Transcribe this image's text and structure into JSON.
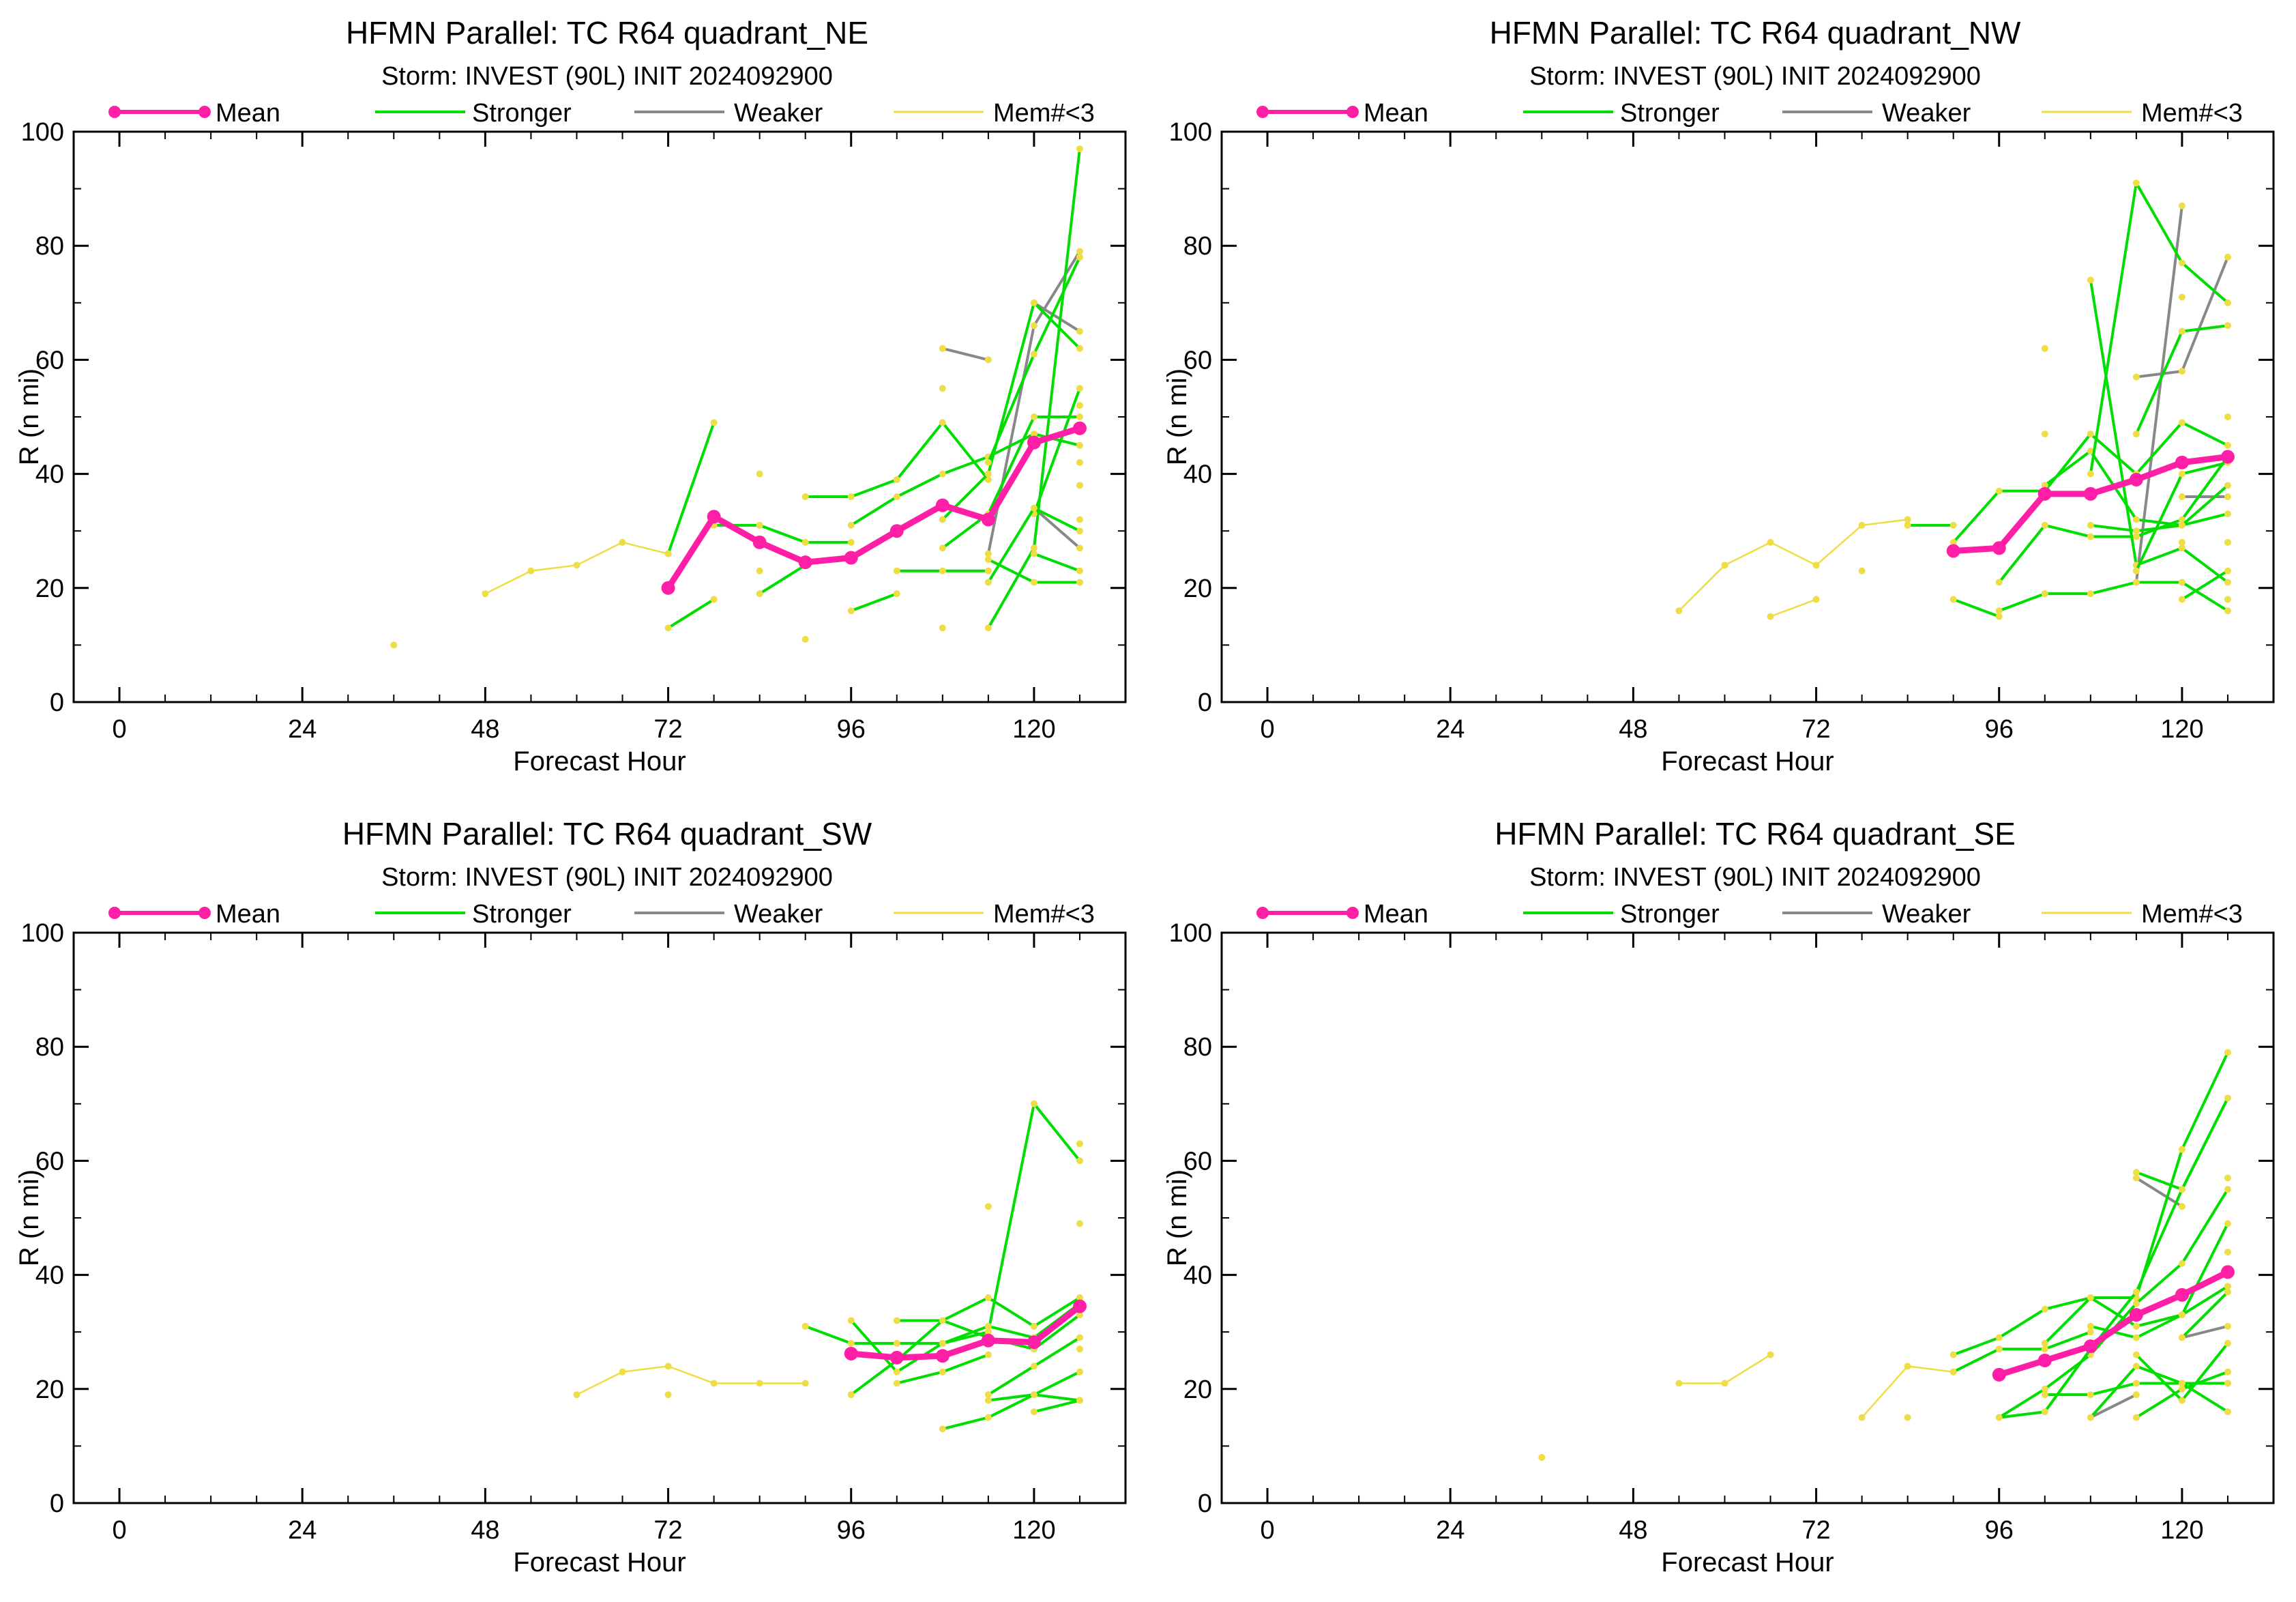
{
  "colors": {
    "mean": "#ff1fa6",
    "stronger": "#00dd00",
    "weaker": "#888888",
    "few_members": "#eedd44",
    "axis": "#000000"
  },
  "legend": {
    "mean": "Mean",
    "stronger": "Stronger",
    "weaker": "Weaker",
    "few_members": "Mem#<3"
  },
  "chart_data": [
    {
      "type": "line",
      "title": "HFMN Parallel: TC  R64 quadrant_NE",
      "subtitle": "Storm: INVEST (90L) INIT 2024092900",
      "xlabel": "Forecast Hour",
      "ylabel": "R (n mi)",
      "xlim": [
        -6,
        132
      ],
      "ylim": [
        0,
        100
      ],
      "xticks": [
        0,
        24,
        48,
        72,
        96,
        120
      ],
      "yticks": [
        0,
        20,
        40,
        60,
        80,
        100
      ],
      "grid": false,
      "mean": {
        "x": [
          72,
          78,
          84,
          90,
          96,
          102,
          108,
          114,
          120,
          126
        ],
        "y": [
          20,
          32.5,
          28,
          24.5,
          25.3,
          30,
          34.5,
          32,
          45.5,
          48
        ]
      },
      "stronger": [
        {
          "x": [
            72,
            78
          ],
          "y": [
            26,
            49
          ]
        },
        {
          "x": [
            72,
            78
          ],
          "y": [
            13,
            18
          ]
        },
        {
          "x": [
            78,
            84
          ],
          "y": [
            31,
            31
          ]
        },
        {
          "x": [
            84,
            90,
            96
          ],
          "y": [
            31,
            28,
            28
          ]
        },
        {
          "x": [
            84,
            90
          ],
          "y": [
            19,
            24
          ]
        },
        {
          "x": [
            90,
            96,
            102,
            108,
            114
          ],
          "y": [
            36,
            36,
            39,
            49,
            39
          ]
        },
        {
          "x": [
            96,
            102,
            108,
            114,
            120,
            126
          ],
          "y": [
            31,
            36,
            40,
            43,
            47,
            45
          ]
        },
        {
          "x": [
            96,
            102
          ],
          "y": [
            16,
            19
          ]
        },
        {
          "x": [
            102,
            108,
            114
          ],
          "y": [
            23,
            23,
            23
          ]
        },
        {
          "x": [
            108,
            114,
            120,
            126
          ],
          "y": [
            32,
            40,
            70,
            62
          ]
        },
        {
          "x": [
            108,
            114,
            120,
            126
          ],
          "y": [
            27,
            33,
            50,
            50
          ]
        },
        {
          "x": [
            114,
            120,
            126
          ],
          "y": [
            13,
            27,
            97
          ]
        },
        {
          "x": [
            114,
            120,
            126
          ],
          "y": [
            42,
            61,
            78
          ]
        },
        {
          "x": [
            114,
            120,
            126
          ],
          "y": [
            25,
            21,
            21
          ]
        },
        {
          "x": [
            120,
            126
          ],
          "y": [
            26,
            23
          ]
        },
        {
          "x": [
            120,
            126
          ],
          "y": [
            33,
            55
          ]
        },
        {
          "x": [
            114,
            120,
            126
          ],
          "y": [
            21,
            34,
            30
          ]
        }
      ],
      "weaker": [
        {
          "x": [
            108,
            114
          ],
          "y": [
            62,
            60
          ]
        },
        {
          "x": [
            114,
            120,
            126
          ],
          "y": [
            26,
            66,
            79
          ]
        },
        {
          "x": [
            120,
            126
          ],
          "y": [
            70,
            65
          ]
        },
        {
          "x": [
            120,
            126
          ],
          "y": [
            34,
            27
          ]
        }
      ],
      "few_members": [
        {
          "x": [
            36
          ],
          "y": [
            10
          ]
        },
        {
          "x": [
            48,
            54,
            60,
            66,
            72
          ],
          "y": [
            19,
            23,
            24,
            28,
            26
          ]
        },
        {
          "x": [
            84
          ],
          "y": [
            40
          ]
        },
        {
          "x": [
            84
          ],
          "y": [
            23
          ]
        },
        {
          "x": [
            90
          ],
          "y": [
            11
          ]
        },
        {
          "x": [
            108
          ],
          "y": [
            55
          ]
        },
        {
          "x": [
            108
          ],
          "y": [
            13
          ]
        },
        {
          "x": [
            126
          ],
          "y": [
            52
          ]
        },
        {
          "x": [
            126
          ],
          "y": [
            42
          ]
        },
        {
          "x": [
            126
          ],
          "y": [
            38
          ]
        },
        {
          "x": [
            126
          ],
          "y": [
            32
          ]
        }
      ]
    },
    {
      "type": "line",
      "title": "HFMN Parallel: TC  R64 quadrant_NW",
      "subtitle": "Storm: INVEST (90L) INIT 2024092900",
      "xlabel": "Forecast Hour",
      "ylabel": "R (n mi)",
      "xlim": [
        -6,
        132
      ],
      "ylim": [
        0,
        100
      ],
      "xticks": [
        0,
        24,
        48,
        72,
        96,
        120
      ],
      "yticks": [
        0,
        20,
        40,
        60,
        80,
        100
      ],
      "grid": false,
      "mean": {
        "x": [
          90,
          96,
          102,
          108,
          114,
          120,
          126
        ],
        "y": [
          26.5,
          27,
          36.5,
          36.5,
          39,
          42,
          43
        ]
      },
      "stronger": [
        {
          "x": [
            84,
            90
          ],
          "y": [
            31,
            31
          ]
        },
        {
          "x": [
            90,
            96,
            102,
            108,
            114,
            120,
            126
          ],
          "y": [
            28,
            37,
            37,
            47,
            40,
            49,
            45
          ]
        },
        {
          "x": [
            90,
            96
          ],
          "y": [
            18,
            15
          ]
        },
        {
          "x": [
            96,
            102,
            108,
            114,
            120,
            126
          ],
          "y": [
            21,
            31,
            29,
            29,
            32,
            43
          ]
        },
        {
          "x": [
            96,
            102,
            108,
            114,
            120,
            126
          ],
          "y": [
            16,
            19,
            19,
            21,
            21,
            16
          ]
        },
        {
          "x": [
            102,
            108,
            114,
            120,
            126
          ],
          "y": [
            38,
            44,
            32,
            31,
            38
          ]
        },
        {
          "x": [
            108,
            114,
            120,
            126
          ],
          "y": [
            74,
            24,
            27,
            21
          ]
        },
        {
          "x": [
            108,
            114,
            120,
            126
          ],
          "y": [
            40,
            91,
            77,
            70
          ]
        },
        {
          "x": [
            108,
            114,
            120,
            126
          ],
          "y": [
            31,
            30,
            31,
            33
          ]
        },
        {
          "x": [
            114,
            120,
            126
          ],
          "y": [
            47,
            65,
            66
          ]
        },
        {
          "x": [
            114,
            120,
            126
          ],
          "y": [
            23,
            40,
            42
          ]
        },
        {
          "x": [
            120,
            126
          ],
          "y": [
            18,
            23
          ]
        }
      ],
      "weaker": [
        {
          "x": [
            114,
            120,
            126
          ],
          "y": [
            57,
            58,
            78
          ]
        },
        {
          "x": [
            114,
            120
          ],
          "y": [
            21,
            87
          ]
        },
        {
          "x": [
            120,
            126
          ],
          "y": [
            36,
            36
          ]
        }
      ],
      "few_members": [
        {
          "x": [
            54,
            60,
            66,
            72,
            78,
            84
          ],
          "y": [
            16,
            24,
            28,
            24,
            31,
            32
          ]
        },
        {
          "x": [
            66,
            72
          ],
          "y": [
            15,
            18
          ]
        },
        {
          "x": [
            78
          ],
          "y": [
            23
          ]
        },
        {
          "x": [
            102
          ],
          "y": [
            62
          ]
        },
        {
          "x": [
            102
          ],
          "y": [
            47
          ]
        },
        {
          "x": [
            120
          ],
          "y": [
            71
          ]
        },
        {
          "x": [
            120
          ],
          "y": [
            28
          ]
        },
        {
          "x": [
            126
          ],
          "y": [
            50
          ]
        },
        {
          "x": [
            126
          ],
          "y": [
            28
          ]
        },
        {
          "x": [
            126
          ],
          "y": [
            18
          ]
        }
      ]
    },
    {
      "type": "line",
      "title": "HFMN Parallel: TC  R64 quadrant_SW",
      "subtitle": "Storm: INVEST (90L) INIT 2024092900",
      "xlabel": "Forecast Hour",
      "ylabel": "R (n mi)",
      "xlim": [
        -6,
        132
      ],
      "ylim": [
        0,
        100
      ],
      "xticks": [
        0,
        24,
        48,
        72,
        96,
        120
      ],
      "yticks": [
        0,
        20,
        40,
        60,
        80,
        100
      ],
      "grid": false,
      "mean": {
        "x": [
          96,
          102,
          108,
          114,
          120,
          126
        ],
        "y": [
          26.2,
          25.5,
          25.8,
          28.5,
          28.2,
          34.5
        ]
      },
      "stronger": [
        {
          "x": [
            90,
            96,
            102,
            108,
            114,
            120,
            126
          ],
          "y": [
            31,
            28,
            28,
            28,
            30,
            70,
            60
          ]
        },
        {
          "x": [
            96,
            102,
            108,
            114,
            120,
            126
          ],
          "y": [
            32,
            23,
            28,
            31,
            29,
            35
          ]
        },
        {
          "x": [
            96,
            102,
            108,
            114,
            120,
            126
          ],
          "y": [
            19,
            25,
            32,
            36,
            31,
            36
          ]
        },
        {
          "x": [
            102,
            108,
            114,
            120,
            126
          ],
          "y": [
            32,
            32,
            29,
            27,
            33
          ]
        },
        {
          "x": [
            102,
            108,
            114
          ],
          "y": [
            21,
            23,
            26
          ]
        },
        {
          "x": [
            108,
            114,
            120,
            126
          ],
          "y": [
            13,
            15,
            19,
            23
          ]
        },
        {
          "x": [
            114,
            120,
            126
          ],
          "y": [
            18,
            19,
            18
          ]
        },
        {
          "x": [
            114,
            120,
            126
          ],
          "y": [
            19,
            24,
            29
          ]
        },
        {
          "x": [
            120,
            126
          ],
          "y": [
            16,
            18
          ]
        }
      ],
      "weaker": [],
      "few_members": [
        {
          "x": [
            60,
            66,
            72,
            78,
            84,
            90
          ],
          "y": [
            19,
            23,
            24,
            21,
            21,
            21
          ]
        },
        {
          "x": [
            72
          ],
          "y": [
            19
          ]
        },
        {
          "x": [
            114
          ],
          "y": [
            52
          ]
        },
        {
          "x": [
            126
          ],
          "y": [
            63
          ]
        },
        {
          "x": [
            126
          ],
          "y": [
            49
          ]
        },
        {
          "x": [
            126
          ],
          "y": [
            27
          ]
        }
      ]
    },
    {
      "type": "line",
      "title": "HFMN Parallel: TC  R64 quadrant_SE",
      "subtitle": "Storm: INVEST (90L) INIT 2024092900",
      "xlabel": "Forecast Hour",
      "ylabel": "R (n mi)",
      "xlim": [
        -6,
        132
      ],
      "ylim": [
        0,
        100
      ],
      "xticks": [
        0,
        24,
        48,
        72,
        96,
        120
      ],
      "yticks": [
        0,
        20,
        40,
        60,
        80,
        100
      ],
      "grid": false,
      "mean": {
        "x": [
          96,
          102,
          108,
          114,
          120,
          126
        ],
        "y": [
          22.5,
          25,
          27.5,
          33,
          36.5,
          40.5
        ]
      },
      "stronger": [
        {
          "x": [
            90,
            96,
            102,
            108,
            114,
            120,
            126
          ],
          "y": [
            26,
            29,
            34,
            36,
            36,
            62,
            79
          ]
        },
        {
          "x": [
            90,
            96,
            102,
            108
          ],
          "y": [
            23,
            27,
            27,
            30
          ]
        },
        {
          "x": [
            96,
            102,
            108,
            114,
            120,
            126
          ],
          "y": [
            15,
            20,
            26,
            35,
            42,
            55
          ]
        },
        {
          "x": [
            96,
            102,
            108,
            114,
            120,
            126
          ],
          "y": [
            15,
            16,
            27,
            37,
            55,
            71
          ]
        },
        {
          "x": [
            102,
            108,
            114,
            120,
            126
          ],
          "y": [
            28,
            36,
            31,
            33,
            49
          ]
        },
        {
          "x": [
            102,
            108,
            114,
            120,
            126
          ],
          "y": [
            19,
            19,
            21,
            21,
            21
          ]
        },
        {
          "x": [
            108,
            114,
            120,
            126
          ],
          "y": [
            15,
            24,
            21,
            16
          ]
        },
        {
          "x": [
            108,
            114,
            120,
            126
          ],
          "y": [
            31,
            29,
            33,
            38
          ]
        },
        {
          "x": [
            114,
            120,
            126
          ],
          "y": [
            15,
            20,
            23
          ]
        },
        {
          "x": [
            114,
            120,
            126
          ],
          "y": [
            58,
            55,
            71
          ]
        },
        {
          "x": [
            114,
            120,
            126
          ],
          "y": [
            26,
            18,
            28
          ]
        },
        {
          "x": [
            120,
            126
          ],
          "y": [
            29,
            37
          ]
        }
      ],
      "weaker": [
        {
          "x": [
            108,
            114
          ],
          "y": [
            15,
            19
          ]
        },
        {
          "x": [
            114,
            120
          ],
          "y": [
            57,
            52
          ]
        },
        {
          "x": [
            120,
            126
          ],
          "y": [
            29,
            31
          ]
        }
      ],
      "few_members": [
        {
          "x": [
            36
          ],
          "y": [
            8
          ]
        },
        {
          "x": [
            54,
            60,
            66
          ],
          "y": [
            21,
            21,
            26
          ]
        },
        {
          "x": [
            78,
            84,
            90
          ],
          "y": [
            15,
            24,
            23
          ]
        },
        {
          "x": [
            84
          ],
          "y": [
            15
          ]
        },
        {
          "x": [
            126
          ],
          "y": [
            57
          ]
        },
        {
          "x": [
            126
          ],
          "y": [
            44
          ]
        },
        {
          "x": [
            126
          ],
          "y": [
            21
          ]
        }
      ]
    }
  ]
}
